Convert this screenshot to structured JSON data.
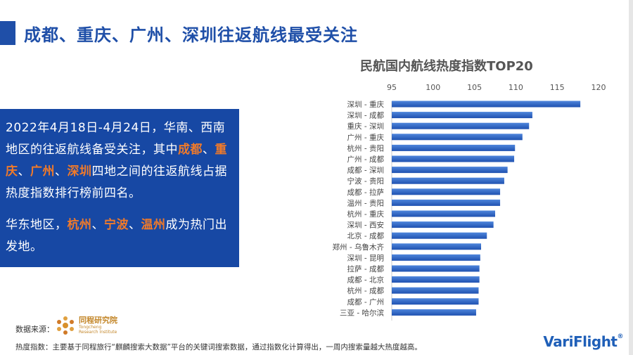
{
  "slide": {
    "title": "成都、重庆、广州、深圳往返航线最受关注"
  },
  "info": {
    "p1_a": "2022年4月18日-4月24日，华南、西南地区的往返航线备受关注，其中",
    "p1_h1": "成都",
    "sep1": "、",
    "p1_h2": "重庆",
    "sep2": "、",
    "p1_h3": "广州",
    "sep3": "、",
    "p1_h4": "深圳",
    "p1_b": "四地之间的往返航线占据热度指数排行榜前四名。",
    "p2_a": "华东地区，",
    "p2_h1": "杭州",
    "sep4": "、",
    "p2_h2": "宁波",
    "sep5": "、",
    "p2_h3": "温州",
    "p2_b": "成为热门出发地。"
  },
  "footer": {
    "source_label": "数据来源：",
    "logo_name": "同程研究院",
    "logo_en_1": "Tongcheng",
    "logo_en_2": "Research Institute",
    "note": "热度指数：主要基于同程旅行“麒麟搜索大数据”平台的关键词搜索数据，通过指数化计算得出，一周内搜索量越大热度越高。",
    "brand": "VariFlight",
    "brand_mark": "®"
  },
  "chart_data": {
    "type": "bar",
    "orientation": "horizontal",
    "title": "民航国内航线热度指数TOP20",
    "categories": [
      "深圳 - 重庆",
      "深圳 - 成都",
      "重庆 - 深圳",
      "广州 - 重庆",
      "杭州 - 贵阳",
      "广州 - 成都",
      "成都 - 深圳",
      "宁波 - 贵阳",
      "成都 - 拉萨",
      "温州 - 贵阳",
      "杭州 - 重庆",
      "深圳 - 西安",
      "北京 - 成都",
      "郑州 - 乌鲁木齐",
      "深圳 - 昆明",
      "拉萨 - 成都",
      "成都 - 北京",
      "杭州 - 成都",
      "成都 - 广州",
      "三亚 - 哈尔滨"
    ],
    "values": [
      117.8,
      112.0,
      111.6,
      110.8,
      109.9,
      109.8,
      109.0,
      108.6,
      108.1,
      108.1,
      107.5,
      107.3,
      106.5,
      105.8,
      105.7,
      105.6,
      105.6,
      105.5,
      105.5,
      105.2
    ],
    "xlim": [
      95,
      120
    ],
    "xticks": [
      95,
      100,
      105,
      110,
      115,
      120
    ],
    "tick_labels": [
      "95",
      "100",
      "105",
      "110",
      "115",
      "120"
    ],
    "axis_position": "top",
    "grid": false,
    "bar_color": "#2a62c9"
  }
}
